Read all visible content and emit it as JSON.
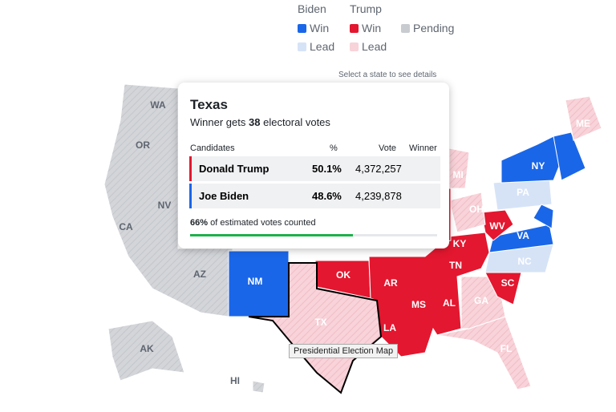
{
  "legend": {
    "biden": "Biden",
    "trump": "Trump",
    "biden_win": "Win",
    "biden_lead": "Lead",
    "trump_win": "Win",
    "trump_lead": "Lead",
    "pending": "Pending"
  },
  "hint": "Select a state to see details",
  "states": [
    {
      "id": "WA",
      "label": "WA"
    },
    {
      "id": "OR",
      "label": "OR"
    },
    {
      "id": "CA",
      "label": "CA"
    },
    {
      "id": "NV",
      "label": "NV"
    },
    {
      "id": "AZ",
      "label": "AZ"
    },
    {
      "id": "NM",
      "label": "NM"
    },
    {
      "id": "OK",
      "label": "OK"
    },
    {
      "id": "TX",
      "label": "TX"
    },
    {
      "id": "AR",
      "label": "AR"
    },
    {
      "id": "LA",
      "label": "LA"
    },
    {
      "id": "MS",
      "label": "MS"
    },
    {
      "id": "AL",
      "label": "AL"
    },
    {
      "id": "TN",
      "label": "TN"
    },
    {
      "id": "KY",
      "label": "KY"
    },
    {
      "id": "WV",
      "label": "WV"
    },
    {
      "id": "VA",
      "label": "VA"
    },
    {
      "id": "NC",
      "label": "NC"
    },
    {
      "id": "SC",
      "label": "SC"
    },
    {
      "id": "GA",
      "label": "GA"
    },
    {
      "id": "FL",
      "label": "FL"
    },
    {
      "id": "OH",
      "label": "OH"
    },
    {
      "id": "PA",
      "label": "PA"
    },
    {
      "id": "NY",
      "label": "NY"
    },
    {
      "id": "MI",
      "label": "MI"
    },
    {
      "id": "ME",
      "label": "ME"
    },
    {
      "id": "AK",
      "label": "AK"
    },
    {
      "id": "HI",
      "label": "HI"
    }
  ],
  "tooltip": {
    "state": "Texas",
    "subtitle_pre": "Winner gets",
    "electoral_votes": "38",
    "subtitle_post": "electoral votes",
    "headers": [
      "Candidates",
      "%",
      "Vote",
      "Winner"
    ],
    "rows": [
      [
        "Donald Trump",
        "50.1%",
        "4,372,257"
      ],
      [
        "Joe Biden",
        "48.6%",
        "4,239,878"
      ]
    ],
    "counted": {
      "value": 66,
      "label": "66%"
    },
    "counted_text": "of estimated votes counted"
  },
  "map_tooltip": "Presidential Election Map"
}
